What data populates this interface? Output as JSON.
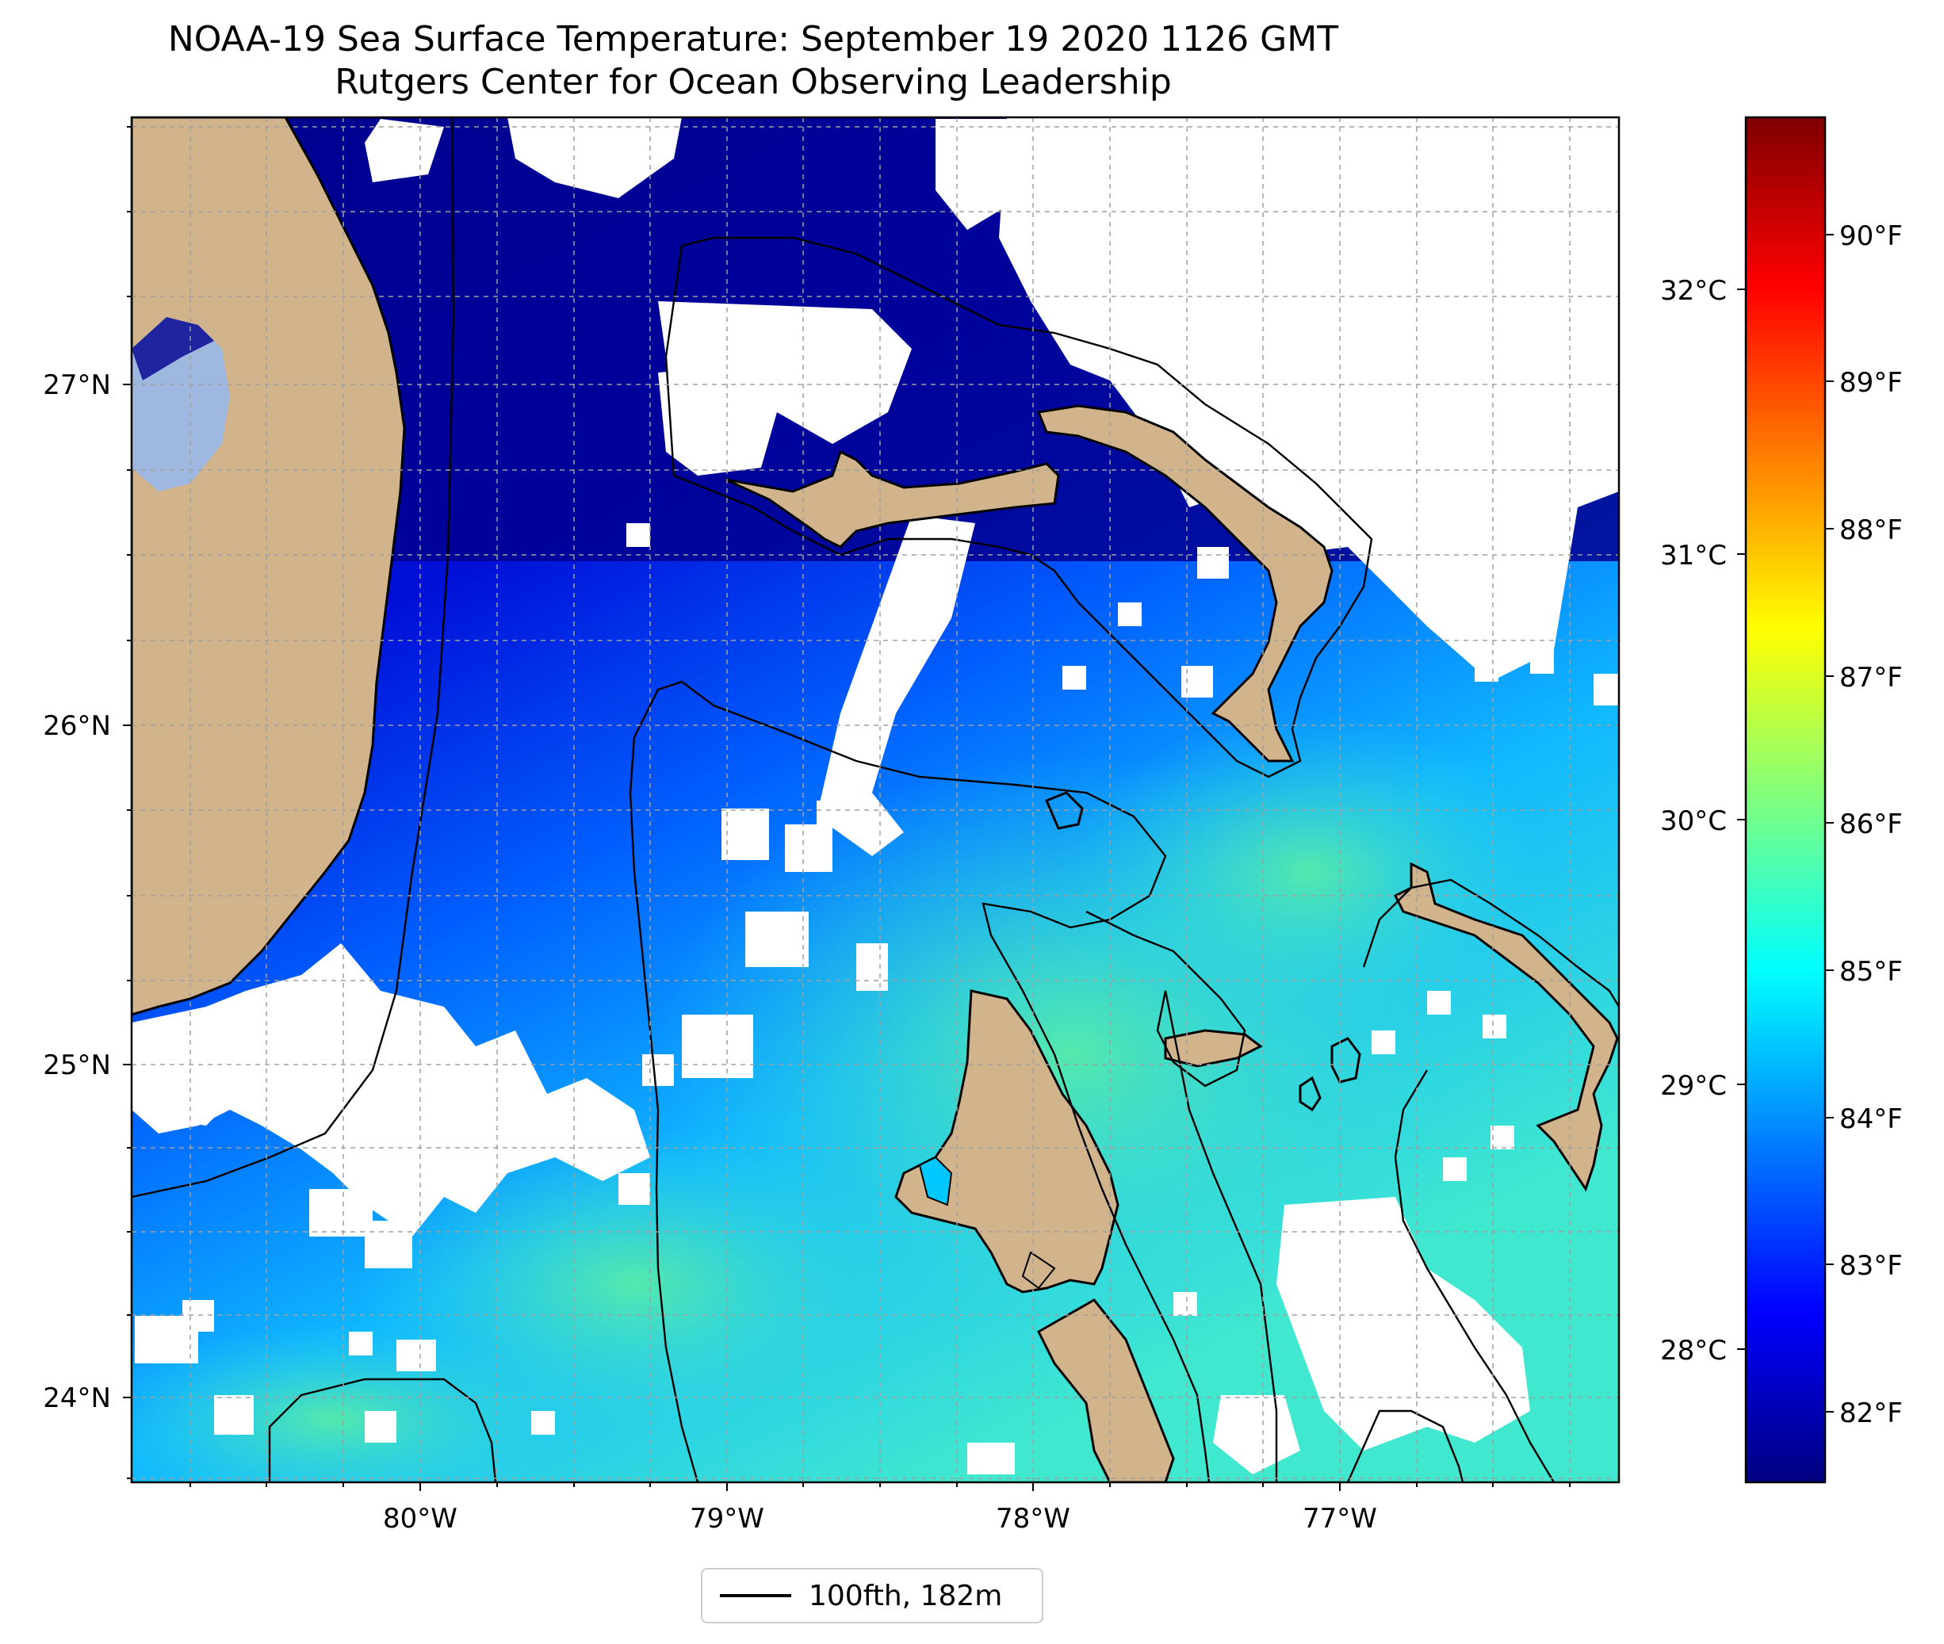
{
  "title_line1": "NOAA-19 Sea Surface Temperature: September 19 2020 1126 GMT",
  "title_line2": "Rutgers Center for Ocean Observing Leadership",
  "lat_labels": [
    "27°N",
    "26°N",
    "25°N",
    "24°N"
  ],
  "lon_labels": [
    "80°W",
    "79°W",
    "78°W",
    "77°W"
  ],
  "colorbar": {
    "celsius_labels": [
      "32°C",
      "31°C",
      "30°C",
      "29°C",
      "28°C"
    ],
    "fahrenheit_labels": [
      "90°F",
      "89°F",
      "88°F",
      "87°F",
      "86°F",
      "85°F",
      "84°F",
      "83°F",
      "82°F"
    ],
    "colors": [
      "#00007f",
      "#0000ff",
      "#007fff",
      "#00ffff",
      "#7fff7f",
      "#ffff00",
      "#ff7f00",
      "#ff0000",
      "#7f0000"
    ]
  },
  "legend": {
    "label": "100fth, 182m"
  },
  "colors": {
    "land": "#d2b48c",
    "cloud": "#ffffff",
    "isobath": "#000000",
    "lake": "#9fb8e0"
  }
}
